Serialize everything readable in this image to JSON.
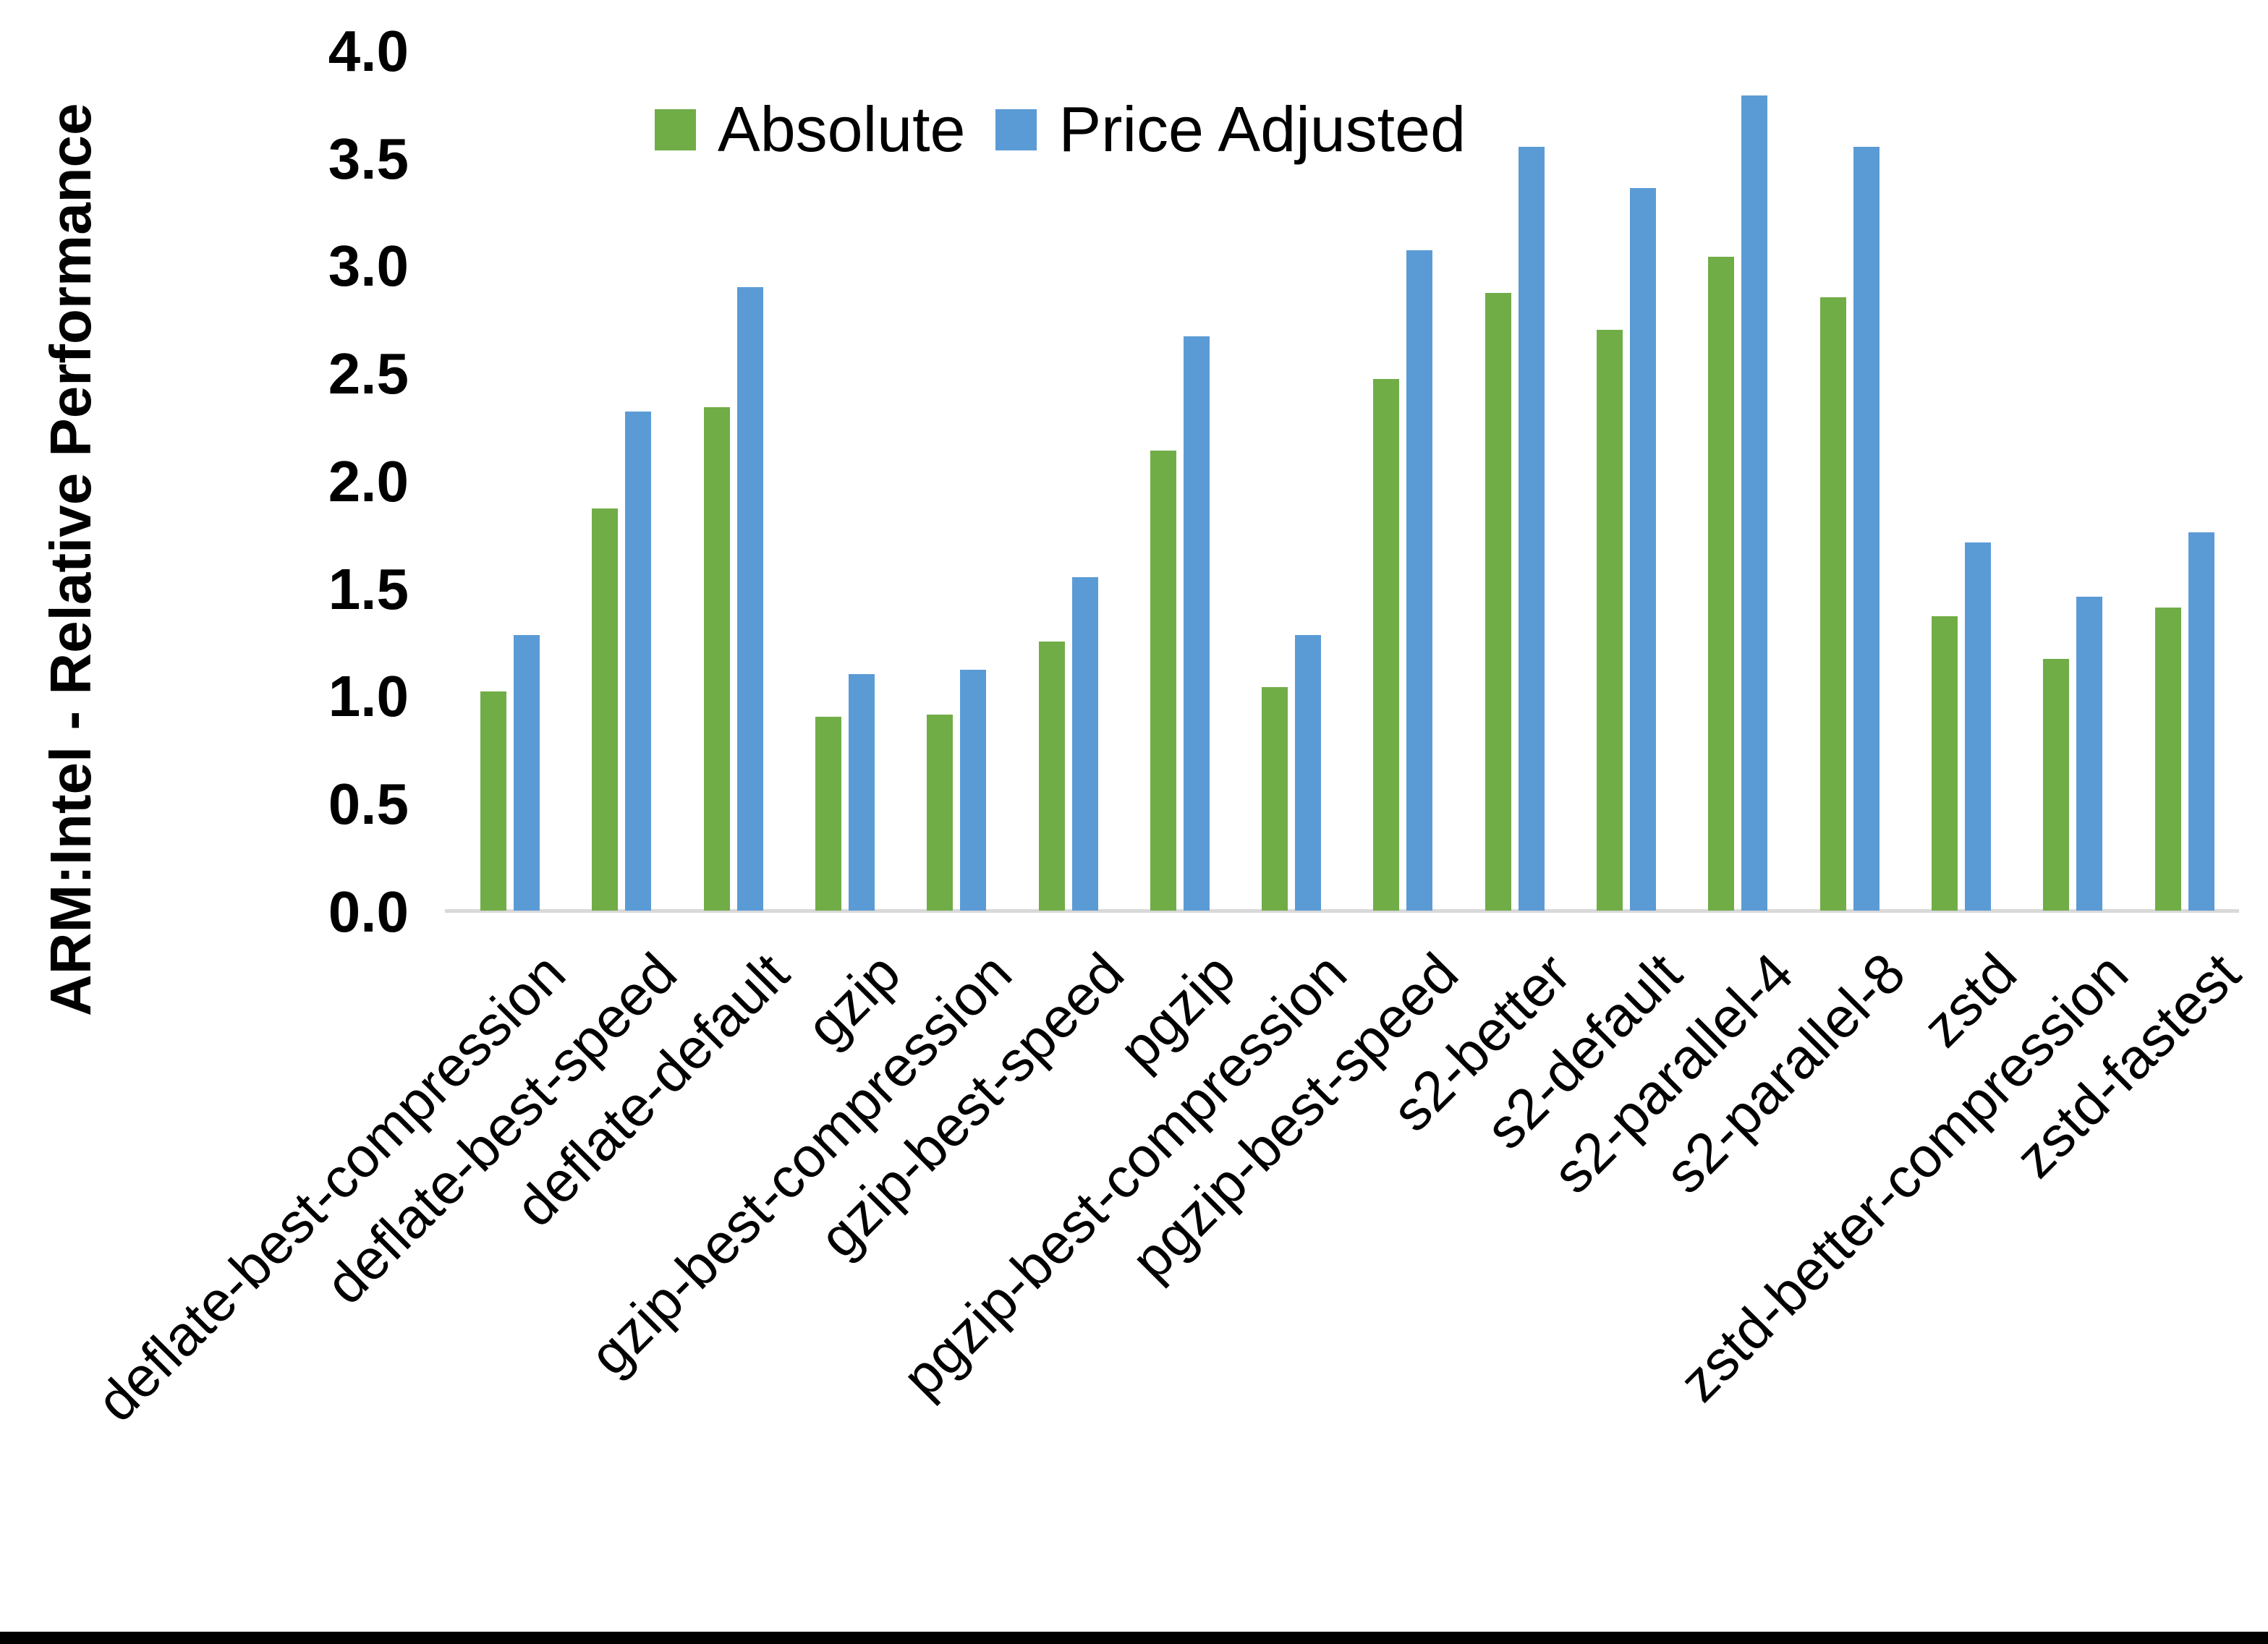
{
  "chart_data": {
    "type": "bar",
    "title": "",
    "ylabel": "ARM:Intel - Relative Performance",
    "xlabel": "",
    "ylim": [
      0.0,
      4.0
    ],
    "ytick_step": 0.5,
    "yticks": [
      "4.0",
      "3.5",
      "3.0",
      "2.5",
      "2.0",
      "1.5",
      "1.0",
      "0.5",
      "0.0"
    ],
    "grid": false,
    "legend_position": "top-center",
    "axis_line_color": "#D9D9D9",
    "categories": [
      "deflate-best-compression",
      "deflate-best-speed",
      "deflate-default",
      "gzip",
      "gzip-best-compression",
      "gzip-best-speed",
      "pgzip",
      "pgzip-best-compression",
      "pgzip-best-speed",
      "s2-better",
      "s2-default",
      "s2-parallel-4",
      "s2-parallel-8",
      "zstd",
      "zstd-better-compression",
      "zstd-fastest"
    ],
    "series": [
      {
        "name": "Absolute",
        "color": "#70AD47",
        "values": [
          1.02,
          1.87,
          2.34,
          0.9,
          0.91,
          1.25,
          2.14,
          1.04,
          2.47,
          2.87,
          2.7,
          3.04,
          2.85,
          1.37,
          1.17,
          1.41
        ]
      },
      {
        "name": "Price Adjusted",
        "color": "#5B9BD5",
        "values": [
          1.28,
          2.32,
          2.9,
          1.1,
          1.12,
          1.55,
          2.67,
          1.28,
          3.07,
          3.55,
          3.36,
          3.79,
          3.55,
          1.71,
          1.46,
          1.76
        ]
      }
    ]
  }
}
